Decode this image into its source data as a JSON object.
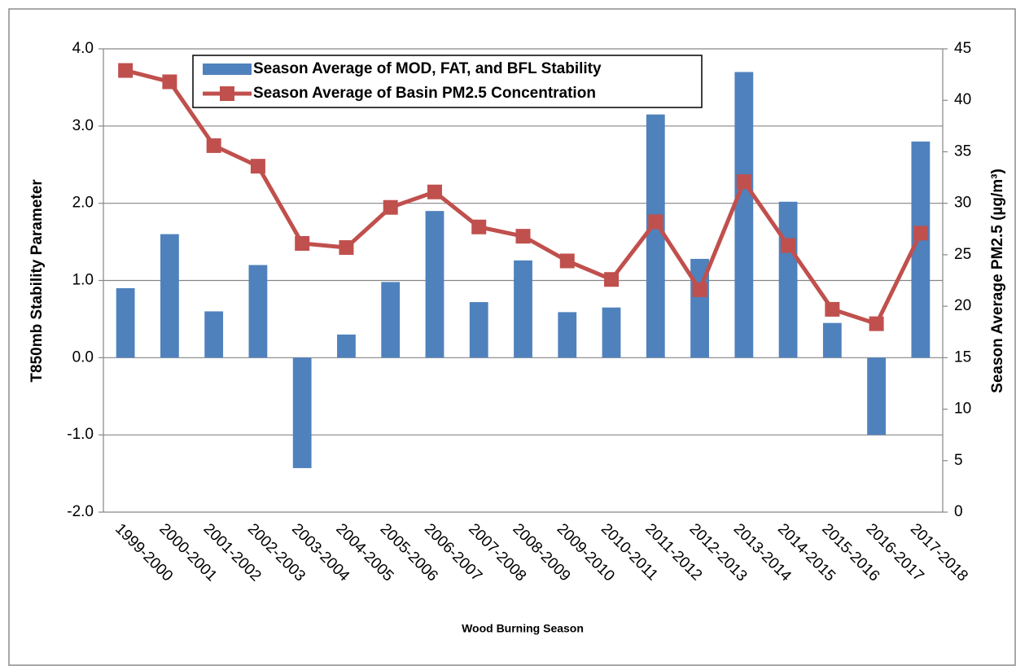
{
  "chart_data": {
    "type": "bar",
    "x_label": "Wood Burning Season",
    "y_label": "T850mb Stability Parameter",
    "y2_label": "Season Average PM2.5 (µg/m³)",
    "categories": [
      "1999-2000",
      "2000-2001",
      "2001-2002",
      "2002-2003",
      "2003-2004",
      "2004-2005",
      "2005-2006",
      "2006-2007",
      "2007-2008",
      "2008-2009",
      "2009-2010",
      "2010-2011",
      "2011-2012",
      "2012-2013",
      "2013-2014",
      "2014-2015",
      "2015-2016",
      "2016-2017",
      "2017-2018"
    ],
    "series": [
      {
        "name": "Season Average of MOD, FAT, and BFL Stability",
        "type": "bar",
        "color": "#4f81bd",
        "values": [
          0.9,
          1.6,
          0.6,
          1.2,
          -1.43,
          0.3,
          0.98,
          1.9,
          0.72,
          1.26,
          0.59,
          0.65,
          3.15,
          1.28,
          3.7,
          2.02,
          0.45,
          -1.0,
          2.8
        ]
      },
      {
        "name": "Season Average of Basin PM2.5 Concentration",
        "type": "line",
        "axis": "y2",
        "color": "#c0504d",
        "values": [
          42.9,
          41.8,
          35.6,
          33.6,
          26.1,
          25.7,
          29.6,
          31.1,
          27.7,
          26.8,
          24.4,
          22.6,
          28.2,
          21.6,
          32.1,
          25.9,
          19.7,
          18.3,
          27.1
        ]
      }
    ],
    "ylim": [
      -2,
      4
    ],
    "yticks": [
      {
        "value": -2,
        "label": "-2.0"
      },
      {
        "value": -1,
        "label": "-1.0"
      },
      {
        "value": 0,
        "label": "0.0"
      },
      {
        "value": 1,
        "label": "1.0"
      },
      {
        "value": 2,
        "label": "2.0"
      },
      {
        "value": 3,
        "label": "3.0"
      },
      {
        "value": 4,
        "label": "4.0"
      }
    ],
    "y2lim": [
      0,
      45
    ],
    "y2ticks": [
      0,
      5,
      10,
      15,
      20,
      25,
      30,
      35,
      40,
      45
    ],
    "grid": true,
    "legend": "top-left"
  }
}
